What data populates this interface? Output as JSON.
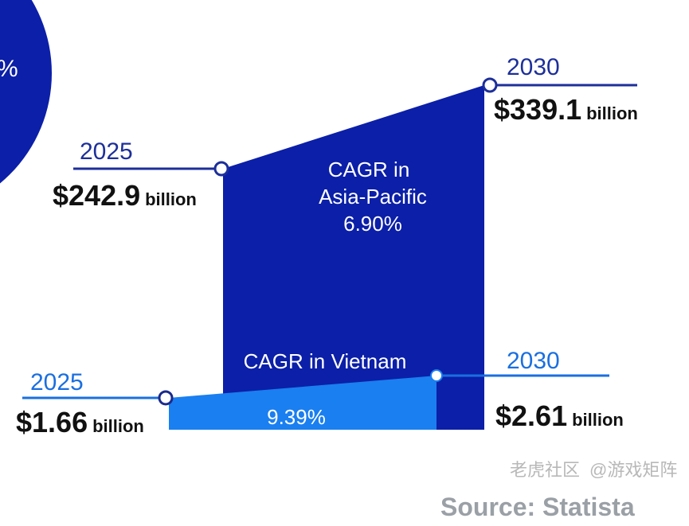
{
  "chart_data": {
    "type": "area",
    "series": [
      {
        "name": "Asia-Pacific",
        "x": [
          2025,
          2030
        ],
        "values": [
          242.9,
          339.1
        ],
        "labels": [
          "$242.9",
          "$339.1"
        ],
        "cagr_label": [
          "CAGR in",
          "Asia-Pacific",
          "6.90%"
        ],
        "color": "#0b1fa8"
      },
      {
        "name": "Vietnam",
        "x": [
          2025,
          2030
        ],
        "values": [
          1.66,
          2.61
        ],
        "labels": [
          "$1.66",
          "$2.61"
        ],
        "cagr_label": [
          "CAGR in Vietnam",
          "9.39%"
        ],
        "color": "#1a7ff0"
      }
    ],
    "x_labels": [
      "2025",
      "2030"
    ],
    "unit": "billion",
    "partial_circle_label": "%",
    "source": "Source: Statista"
  },
  "watermark": {
    "line1": "老虎社区",
    "line2": "@游戏矩阵"
  },
  "colors": {
    "dark_blue": "#0b1fa8",
    "light_blue": "#1a7ff0",
    "line_dark": "#1d2f9a"
  }
}
